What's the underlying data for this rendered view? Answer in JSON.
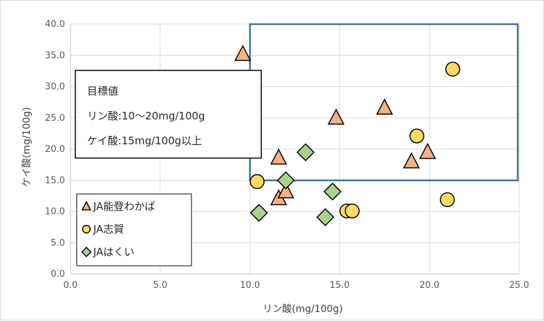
{
  "chart_data": {
    "type": "scatter",
    "title": "",
    "xlabel": "リン酸(mg/100g)",
    "ylabel": "ケイ酸(mg/100g)",
    "xlim": [
      0,
      25
    ],
    "ylim": [
      0,
      40
    ],
    "x_ticks": [
      "0.0",
      "5.0",
      "10.0",
      "15.0",
      "20.0",
      "25.0"
    ],
    "y_ticks": [
      "0.0",
      "5.0",
      "10.0",
      "15.0",
      "20.0",
      "25.0",
      "30.0",
      "35.0",
      "40.0"
    ],
    "grid": true,
    "legend_position": "bottom-left",
    "target_region": {
      "x_min": 10,
      "x_max": 25,
      "y_min": 15,
      "y_max": 40,
      "color": "#41719c"
    },
    "annotation": {
      "lines": [
        "目標値",
        "リン酸:10〜20mg/100g",
        "ケイ酸:15mg/100g以上"
      ]
    },
    "series": [
      {
        "name": "JA能登わかば",
        "marker": "triangle",
        "color": "#f4b183",
        "points": [
          {
            "x": 9.6,
            "y": 35.2
          },
          {
            "x": 11.6,
            "y": 18.6
          },
          {
            "x": 11.6,
            "y": 12.1
          },
          {
            "x": 12.0,
            "y": 13.2
          },
          {
            "x": 14.8,
            "y": 25.0
          },
          {
            "x": 17.5,
            "y": 26.6
          },
          {
            "x": 19.0,
            "y": 18.0
          },
          {
            "x": 19.9,
            "y": 19.5
          }
        ]
      },
      {
        "name": "JA志賀",
        "marker": "circle",
        "color": "#ffd966",
        "points": [
          {
            "x": 10.4,
            "y": 14.8
          },
          {
            "x": 15.4,
            "y": 10.1
          },
          {
            "x": 15.7,
            "y": 10.1
          },
          {
            "x": 19.3,
            "y": 22.1
          },
          {
            "x": 21.0,
            "y": 11.9
          },
          {
            "x": 21.3,
            "y": 32.8
          }
        ]
      },
      {
        "name": "JAはくい",
        "marker": "diamond",
        "color": "#a9d18e",
        "points": [
          {
            "x": 10.5,
            "y": 9.8
          },
          {
            "x": 12.0,
            "y": 15.0
          },
          {
            "x": 13.1,
            "y": 19.5
          },
          {
            "x": 14.2,
            "y": 9.1
          },
          {
            "x": 14.6,
            "y": 13.2
          }
        ]
      }
    ]
  }
}
